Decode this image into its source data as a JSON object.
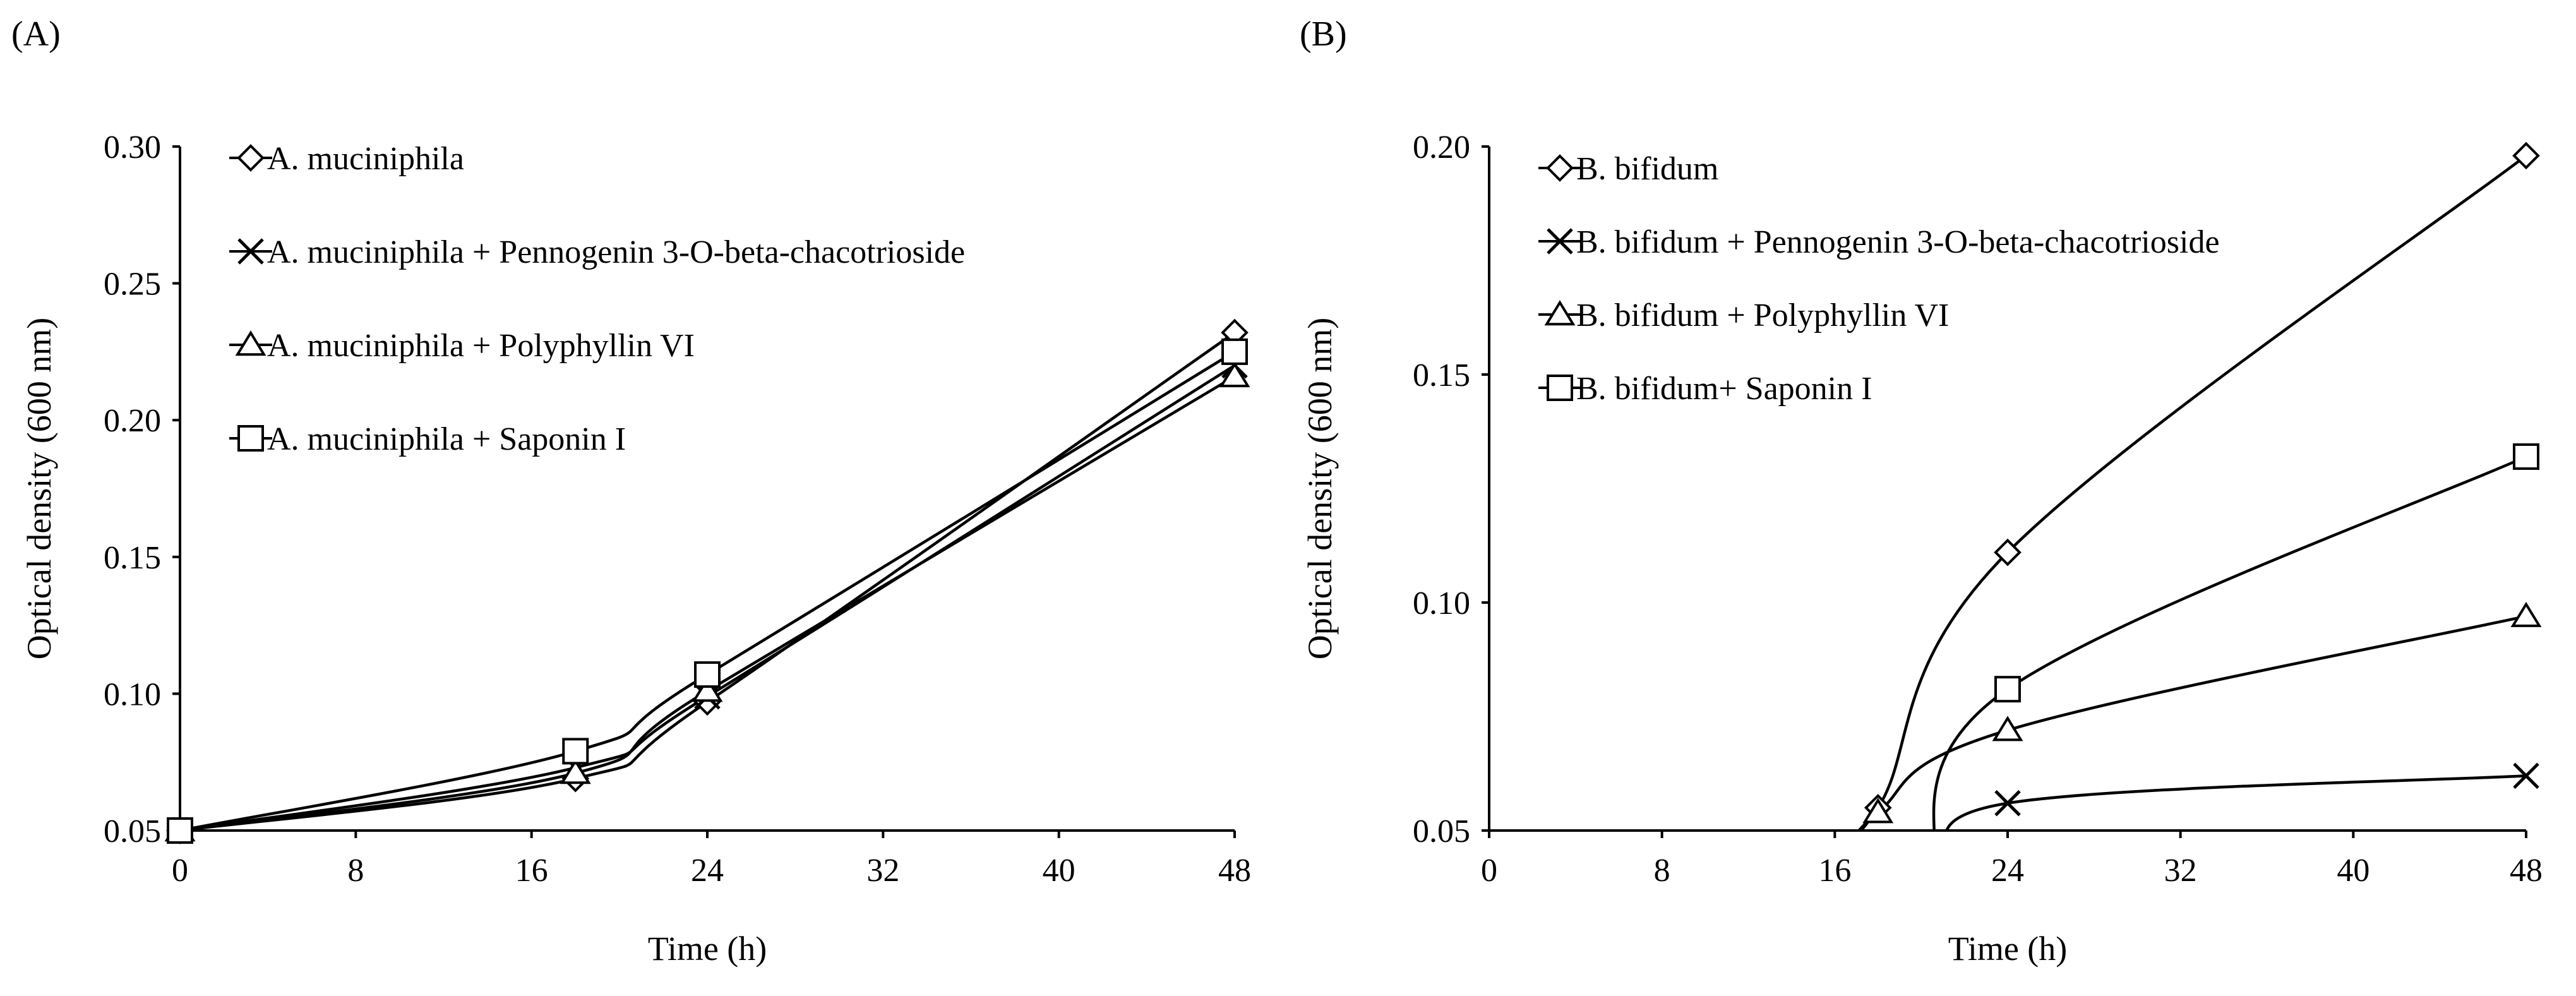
{
  "figure": {
    "panel_labels": [
      "(A)",
      "(B)"
    ]
  },
  "chart_data": [
    {
      "type": "line",
      "panel": "(A)",
      "title": "",
      "xlabel": "Time (h)",
      "ylabel": "Optical density (600 nm)",
      "xlim": [
        0,
        48
      ],
      "ylim": [
        0.05,
        0.3
      ],
      "xticks": [
        "0",
        "8",
        "16",
        "24",
        "32",
        "40",
        "48"
      ],
      "yticks": [
        "0.05",
        "0.10",
        "0.15",
        "0.20",
        "0.25",
        "0.30"
      ],
      "grid": false,
      "legend_position": "top-left",
      "series": [
        {
          "name": "A. muciniphila",
          "marker": "diamond",
          "x": [
            0,
            18,
            24,
            48
          ],
          "y": [
            0.05,
            0.069,
            0.097,
            0.232
          ]
        },
        {
          "name": "A. muciniphila + Pennogenin 3-O-beta-chacotrioside",
          "marker": "x",
          "x": [
            0,
            18,
            24,
            48
          ],
          "y": [
            0.05,
            0.073,
            0.099,
            0.22
          ]
        },
        {
          "name": "A. muciniphila + Polyphyllin VI",
          "marker": "triangle",
          "x": [
            0,
            18,
            24,
            48
          ],
          "y": [
            0.05,
            0.071,
            0.101,
            0.216
          ]
        },
        {
          "name": "A. muciniphila + Saponin I",
          "marker": "square",
          "x": [
            0,
            18,
            24,
            48
          ],
          "y": [
            0.05,
            0.079,
            0.107,
            0.225
          ]
        }
      ]
    },
    {
      "type": "line",
      "panel": "(B)",
      "title": "",
      "xlabel": "Time (h)",
      "ylabel": "Optical density (600 nm)",
      "xlim": [
        0,
        48
      ],
      "ylim": [
        0.05,
        0.2
      ],
      "xticks": [
        "0",
        "8",
        "16",
        "24",
        "32",
        "40",
        "48"
      ],
      "yticks": [
        "0.05",
        "0.10",
        "0.15",
        "0.20"
      ],
      "grid": false,
      "legend_position": "top-left",
      "series": [
        {
          "name": "B. bifidum",
          "marker": "diamond",
          "x": [
            18,
            24,
            48
          ],
          "y": [
            0.055,
            0.111,
            0.198
          ]
        },
        {
          "name": "B. bifidum + Pennogenin 3-O-beta-chacotrioside",
          "marker": "x",
          "x": [
            24,
            48
          ],
          "y": [
            0.056,
            0.062
          ]
        },
        {
          "name": "B. bifidum + Polyphyllin VI",
          "marker": "triangle",
          "x": [
            18,
            24,
            48
          ],
          "y": [
            0.054,
            0.072,
            0.097
          ]
        },
        {
          "name": "B. bifidum+ Saponin I",
          "marker": "square",
          "x": [
            24,
            48
          ],
          "y": [
            0.081,
            0.132
          ]
        }
      ]
    }
  ]
}
